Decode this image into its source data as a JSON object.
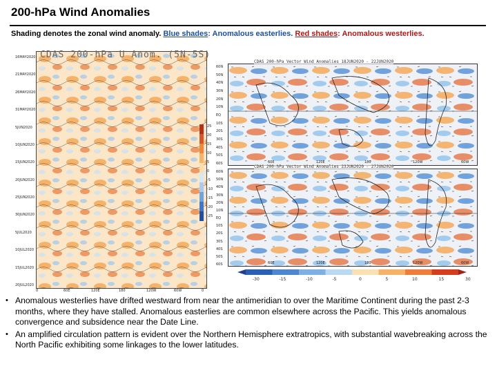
{
  "title": "200-hPa Wind Anomalies",
  "subtitle": {
    "prefix": "Shading denotes the zonal wind anomaly. ",
    "blue_label": "Blue shades",
    "blue_text": ": Anomalous easterlies. ",
    "red_label": "Red shades",
    "red_text": ": Anomalous westerlies."
  },
  "hovmoller": {
    "title": "CDAS 200-hPa U Anom. (5N-5S)",
    "y_ticks": [
      "16MAY2020",
      "21MAY2020",
      "26MAY2020",
      "31MAY2020",
      "5JUN2020",
      "10JUN2020",
      "15JUN2020",
      "20JUN2020",
      "25JUN2020",
      "30JUN2020",
      "5JUL2020",
      "10JUL2020",
      "15JUL2020",
      "20JUL2020"
    ],
    "x_ticks": [
      "0",
      "60E",
      "120E",
      "180",
      "120W",
      "60W",
      "0"
    ],
    "colorbar_labels": [
      "25",
      "20",
      "15",
      "10",
      "5",
      "0",
      "-5",
      "-10",
      "-15",
      "-20",
      "-25"
    ]
  },
  "maps": {
    "top_title": "CDAS 200-hPa Vector Wind Anomalies  18JUN2020 - 22JUN2020",
    "bottom_title": "CDAS 200-hPa Vector Wind Anomalies  23JUN2020 - 27JUN2020",
    "lat_ticks": [
      "60N",
      "50N",
      "40N",
      "30N",
      "20N",
      "10N",
      "EQ",
      "10S",
      "20S",
      "30S",
      "40S",
      "50S",
      "60S"
    ],
    "lon_ticks": [
      "60E",
      "120E",
      "180",
      "120W",
      "60W"
    ],
    "colorbar_labels": [
      "-30",
      "-15",
      "-10",
      "-5",
      "0",
      "5",
      "10",
      "15",
      "30"
    ],
    "colors": {
      "blue_dark": "#2b5fb4",
      "blue_light": "#9cc7ee",
      "red_light": "#f7b26a",
      "red_dark": "#d63c1e"
    }
  },
  "bullets": [
    "Anomalous westerlies have drifted westward from near the antimeridian to over the Maritime Continent during the past 2-3 months, where they have stalled. Anomalous easterlies are common elsewhere across the Pacific. This yields anomalous convergence and subsidence near the Date Line.",
    "An amplified circulation pattern is evident over the Northern Hemisphere extratropics, with substantial wavebreaking across the North Pacific exhibiting some linkages to the lower latitudes."
  ]
}
